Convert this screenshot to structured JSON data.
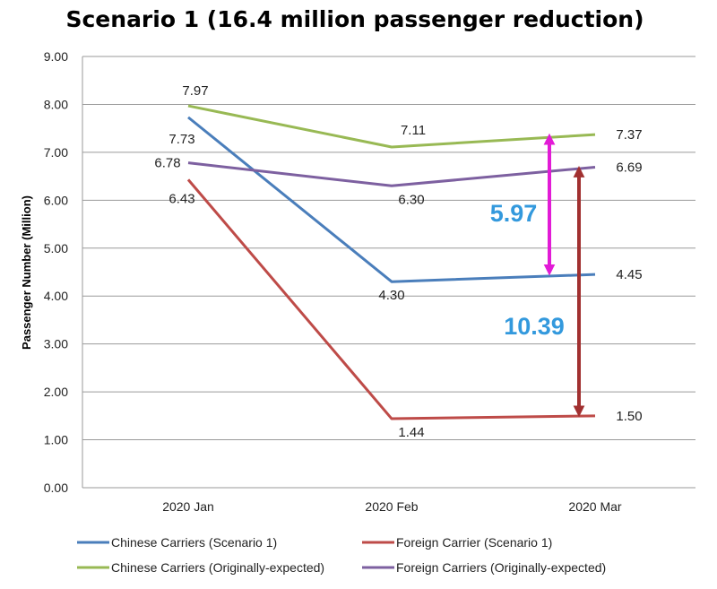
{
  "chart_data": {
    "type": "line",
    "title": "Scenario 1 (16.4 million passenger reduction)",
    "xlabel": "",
    "ylabel": "Passenger Number (Million)",
    "ylim": [
      0,
      9
    ],
    "yticks": [
      "0.00",
      "1.00",
      "2.00",
      "3.00",
      "4.00",
      "5.00",
      "6.00",
      "7.00",
      "8.00",
      "9.00"
    ],
    "categories": [
      "2020 Jan",
      "2020 Feb",
      "2020 Mar"
    ],
    "grid": "horizontal",
    "legend_position": "bottom",
    "series": [
      {
        "name": "Chinese Carriers (Scenario 1)",
        "color": "#4a7ebb",
        "values": [
          7.73,
          4.3,
          4.45
        ],
        "labels": [
          "7.73",
          "4.30",
          "4.45"
        ]
      },
      {
        "name": "Foreign Carrier (Scenario 1)",
        "color": "#be4b48",
        "values": [
          6.43,
          1.44,
          1.5
        ],
        "labels": [
          "6.43",
          "1.44",
          "1.50"
        ]
      },
      {
        "name": "Chinese Carriers (Originally-expected)",
        "color": "#98b954",
        "values": [
          7.97,
          7.11,
          7.37
        ],
        "labels": [
          "7.97",
          "7.11",
          "7.37"
        ]
      },
      {
        "name": "Foreign Carriers (Originally-expected)",
        "color": "#7d60a0",
        "values": [
          6.78,
          6.3,
          6.69
        ],
        "labels": [
          "6.78",
          "6.30",
          "6.69"
        ]
      }
    ],
    "annotations": [
      {
        "text": "5.97",
        "text_color": "#3399dd",
        "arrow_color": "#e21bd6",
        "from": 4.45,
        "to": 7.37,
        "category": "2020 Mar"
      },
      {
        "text": "10.39",
        "text_color": "#3399dd",
        "arrow_color": "#a13030",
        "from": 1.5,
        "to": 6.69,
        "category": "2020 Mar"
      }
    ]
  }
}
